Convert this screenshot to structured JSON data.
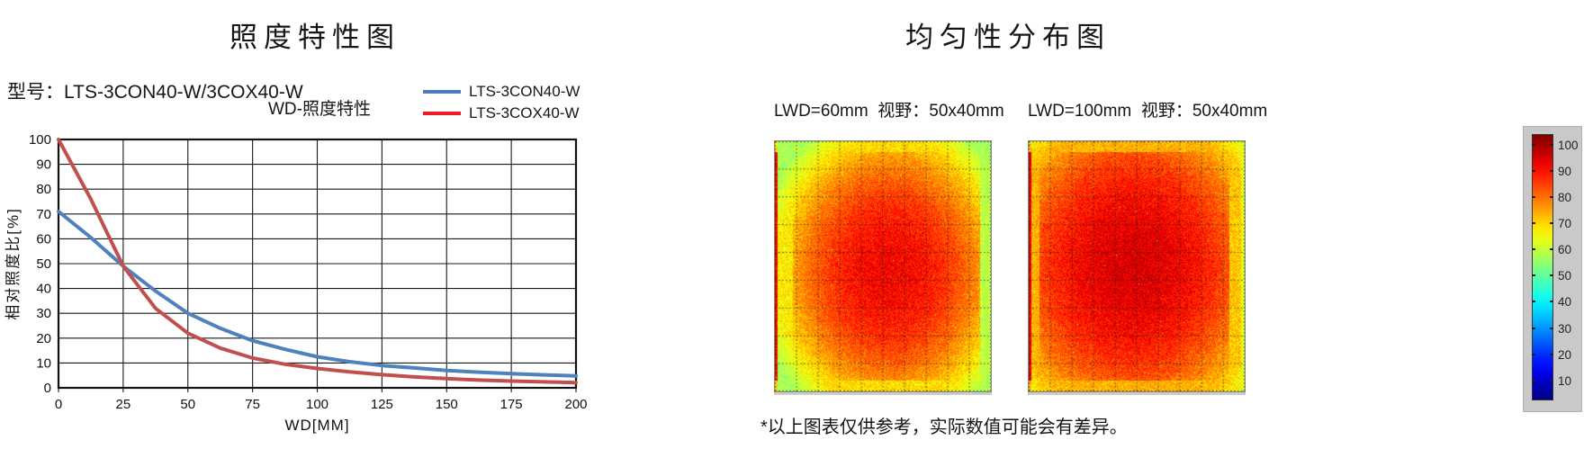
{
  "left_chart": {
    "title": "照度特性图",
    "model_label": "型号：LTS-3CON40-W/3COX40-W",
    "subtitle": "WD-照度特性"
  },
  "right_chart": {
    "title": "均匀性分布图",
    "footnote": "*以上图表仅供参考，实际数值可能会有差异。"
  },
  "chart_data": [
    {
      "type": "line",
      "title": "WD-照度特性",
      "xlabel": "WD[MM]",
      "ylabel": "相对照度比[%]",
      "xlim": [
        0,
        200
      ],
      "ylim": [
        0,
        100
      ],
      "x_ticks": [
        0,
        25,
        50,
        75,
        100,
        125,
        150,
        175,
        200
      ],
      "y_ticks": [
        0,
        10,
        20,
        30,
        40,
        50,
        60,
        70,
        80,
        90,
        100
      ],
      "grid": true,
      "legend_position": "top-right",
      "x": [
        0,
        12.5,
        25,
        37.5,
        50,
        62.5,
        75,
        87.5,
        100,
        112.5,
        125,
        137.5,
        150,
        162.5,
        175,
        187.5,
        200
      ],
      "series": [
        {
          "name": "LTS-3CON40-W",
          "color": "#4f81bd",
          "legend_color": "#4a7ebb",
          "values": [
            71,
            60.5,
            49,
            39,
            30,
            24,
            19,
            15.5,
            12.5,
            10.5,
            9,
            8,
            7,
            6.3,
            5.7,
            5.2,
            4.8
          ]
        },
        {
          "name": "LTS-3COX40-W",
          "color": "#c0504d",
          "legend_color": "#ed1c24",
          "values": [
            100,
            76,
            49,
            32,
            22,
            16,
            12,
            9.5,
            7.8,
            6.4,
            5.3,
            4.4,
            3.7,
            3.1,
            2.7,
            2.4,
            2.1
          ]
        }
      ]
    },
    {
      "type": "heatmap",
      "panels": [
        {
          "label": "LWD=60mm  视野：50x40mm",
          "center_value": 88,
          "edge_value": 54,
          "cx": 0.53,
          "cy": 0.52,
          "rx": 0.62,
          "ry": 0.66,
          "noise": 6,
          "seed": 7,
          "bands": [
            {
              "axis": "x",
              "from": 0,
              "to": 0.012,
              "set": 88
            },
            {
              "axis": "x",
              "from": 0.012,
              "to": 0.08,
              "cap": 64
            },
            {
              "axis": "x",
              "from": 0.95,
              "to": 1,
              "cap": 56
            },
            {
              "axis": "y",
              "from": 0,
              "to": 0.04,
              "cap": 66
            },
            {
              "axis": "y",
              "from": 0.96,
              "to": 1,
              "cap": 66
            }
          ]
        },
        {
          "label": "LWD=100mm  视野：50x40mm",
          "center_value": 91,
          "edge_value": 60,
          "cx": 0.48,
          "cy": 0.5,
          "rx": 0.72,
          "ry": 0.72,
          "noise": 6,
          "seed": 13,
          "bands": [
            {
              "axis": "x",
              "from": 0,
              "to": 0.012,
              "set": 90
            },
            {
              "axis": "x",
              "from": 0.012,
              "to": 0.05,
              "cap": 70
            },
            {
              "axis": "x",
              "from": 0.93,
              "to": 1,
              "cap": 68
            },
            {
              "axis": "x",
              "from": 0.985,
              "to": 1,
              "cap": 60
            },
            {
              "axis": "y",
              "from": 0,
              "to": 0.04,
              "cap": 70
            },
            {
              "axis": "y",
              "from": 0.96,
              "to": 1,
              "cap": 70
            }
          ]
        }
      ],
      "grid": {
        "cols": 10,
        "rows": 9,
        "style": "dotted"
      },
      "colorbar": {
        "colormap": "jet",
        "min": 0,
        "max": 100,
        "ticks": [
          100,
          90,
          80,
          70,
          60,
          50,
          40,
          30,
          20,
          10
        ]
      }
    }
  ]
}
